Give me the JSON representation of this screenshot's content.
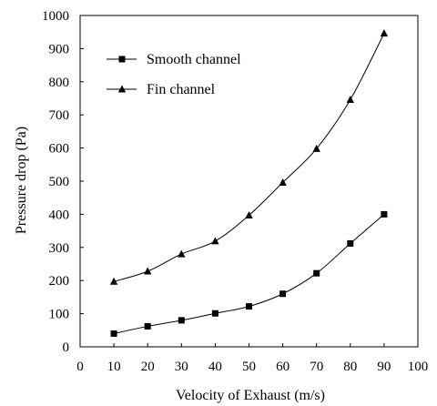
{
  "chart_data": {
    "type": "line",
    "xlabel": "Velocity of Exhaust (m/s)",
    "ylabel": "Pressure drop  (Pa)",
    "xlim": [
      0,
      100
    ],
    "ylim": [
      0,
      1000
    ],
    "x_ticks": [
      "0",
      "10",
      "20",
      "30",
      "40",
      "50",
      "60",
      "70",
      "80",
      "90",
      "100"
    ],
    "y_ticks": [
      "0",
      "100",
      "200",
      "300",
      "400",
      "500",
      "600",
      "700",
      "800",
      "900",
      "1000"
    ],
    "grid": false,
    "legend_position": "top-left",
    "x": [
      10,
      20,
      30,
      40,
      50,
      60,
      70,
      80,
      90
    ],
    "series": [
      {
        "name": "Smooth channel",
        "marker": "square",
        "color": "#000000",
        "values": [
          40,
          62,
          80,
          101,
          122,
          160,
          222,
          312,
          400
        ]
      },
      {
        "name": "Fin channel",
        "marker": "triangle",
        "color": "#000000",
        "values": [
          197,
          228,
          280,
          319,
          397,
          496,
          598,
          746,
          946
        ]
      }
    ]
  }
}
